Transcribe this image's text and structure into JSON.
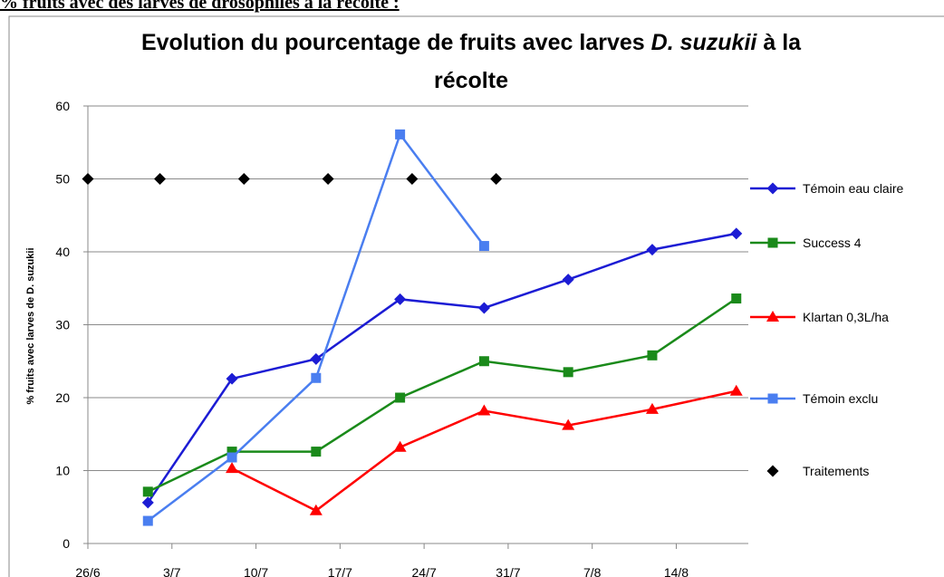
{
  "heading": "% fruits avec des larves de drosophiles à la récolte :",
  "chart_data": {
    "type": "line",
    "title": [
      "Evolution du pourcentage de fruits avec larves",
      "D. suzukii",
      "à la",
      "récolte"
    ],
    "y_label": "% fruits avec larves de D. suzukii",
    "xlim": [
      "26/6",
      "20/8"
    ],
    "xticks": [
      "26/6",
      "3/7",
      "10/7",
      "17/7",
      "24/7",
      "31/7",
      "7/8",
      "14/8"
    ],
    "ylim": [
      0,
      60
    ],
    "yticks": [
      0,
      10,
      20,
      30,
      40,
      50,
      60
    ],
    "grid": true,
    "legend": "right",
    "series": [
      {
        "name": "Témoin eau claire",
        "color": "#1c1cd4",
        "marker": "diamond",
        "line": true,
        "x": [
          "1/7",
          "8/7",
          "15/7",
          "22/7",
          "29/7",
          "5/8",
          "12/8",
          "19/8"
        ],
        "values": [
          5.6,
          22.6,
          25.3,
          33.5,
          32.3,
          36.2,
          40.3,
          42.5
        ]
      },
      {
        "name": "Success 4",
        "color": "#1a8a1a",
        "marker": "square",
        "line": true,
        "x": [
          "1/7",
          "8/7",
          "15/7",
          "22/7",
          "29/7",
          "5/8",
          "12/8",
          "19/8"
        ],
        "values": [
          7.1,
          12.6,
          12.6,
          20.0,
          25.0,
          23.5,
          25.8,
          33.6
        ]
      },
      {
        "name": "Klartan 0,3L/ha",
        "color": "#ff0000",
        "marker": "triangle",
        "line": true,
        "x": [
          "8/7",
          "15/7",
          "22/7",
          "29/7",
          "5/8",
          "12/8",
          "19/8"
        ],
        "values": [
          10.3,
          4.5,
          13.2,
          18.2,
          16.2,
          18.4,
          20.9
        ]
      },
      {
        "name": "Témoin exclu",
        "color": "#4a7ef0",
        "marker": "square",
        "line": true,
        "x": [
          "1/7",
          "8/7",
          "15/7",
          "22/7",
          "29/7"
        ],
        "values": [
          3.1,
          11.8,
          22.7,
          56.1,
          40.8
        ]
      },
      {
        "name": "Traitements",
        "color": "#000000",
        "marker": "diamond",
        "line": false,
        "x": [
          "26/6",
          "2/7",
          "9/7",
          "16/7",
          "23/7",
          "30/7"
        ],
        "values": [
          50,
          50,
          50,
          50,
          50,
          50
        ]
      }
    ]
  }
}
